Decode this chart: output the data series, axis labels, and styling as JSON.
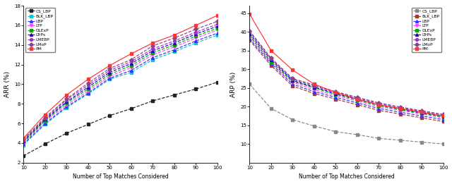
{
  "x": [
    10,
    20,
    30,
    40,
    50,
    60,
    70,
    80,
    90,
    100
  ],
  "arr": {
    "CS_LBP": [
      2.7,
      3.9,
      5.0,
      5.9,
      6.8,
      7.5,
      8.3,
      8.9,
      9.5,
      10.2
    ],
    "BLK_LBP": [
      3.8,
      5.9,
      7.6,
      9.0,
      10.5,
      11.2,
      12.5,
      13.3,
      14.2,
      15.0
    ],
    "LBP": [
      3.9,
      6.0,
      7.7,
      9.1,
      10.6,
      11.4,
      12.7,
      13.5,
      14.4,
      15.2
    ],
    "LTP": [
      4.0,
      6.2,
      7.9,
      9.3,
      10.8,
      11.7,
      13.0,
      13.8,
      14.7,
      15.5
    ],
    "DLExP": [
      4.1,
      6.3,
      8.1,
      9.5,
      11.0,
      11.9,
      13.2,
      14.0,
      14.9,
      15.7
    ],
    "LTrPs": [
      4.2,
      6.4,
      8.2,
      9.7,
      11.2,
      12.1,
      13.4,
      14.2,
      15.1,
      15.9
    ],
    "LMEBP": [
      4.3,
      6.5,
      8.4,
      9.9,
      11.4,
      12.3,
      13.6,
      14.4,
      15.3,
      16.1
    ],
    "LMoP": [
      4.4,
      6.6,
      8.5,
      10.1,
      11.6,
      12.5,
      13.9,
      14.7,
      15.6,
      16.4
    ],
    "PM": [
      4.5,
      6.9,
      8.9,
      10.5,
      11.9,
      13.1,
      14.2,
      15.0,
      16.0,
      17.0
    ]
  },
  "arp": {
    "CS_LBP": [
      26.0,
      19.5,
      16.5,
      14.8,
      13.3,
      12.5,
      11.5,
      11.0,
      10.5,
      10.0
    ],
    "BLK_LBP": [
      37.8,
      31.0,
      25.5,
      23.5,
      22.0,
      20.5,
      19.0,
      18.0,
      17.0,
      16.0
    ],
    "LBP": [
      38.2,
      31.5,
      26.0,
      24.0,
      22.5,
      21.0,
      19.5,
      18.5,
      17.5,
      16.5
    ],
    "LTP": [
      38.8,
      31.8,
      26.5,
      24.5,
      23.0,
      21.5,
      20.0,
      19.0,
      18.0,
      17.0
    ],
    "DLExP": [
      39.0,
      32.0,
      26.8,
      25.0,
      23.3,
      21.8,
      20.3,
      19.2,
      18.2,
      17.2
    ],
    "LTrPs": [
      39.5,
      32.5,
      27.0,
      25.2,
      23.5,
      22.0,
      20.5,
      19.4,
      18.4,
      17.4
    ],
    "LMEBP": [
      40.0,
      32.8,
      27.3,
      25.5,
      23.8,
      22.3,
      20.8,
      19.7,
      18.7,
      17.7
    ],
    "LMoP": [
      40.3,
      33.0,
      27.5,
      25.8,
      24.0,
      22.5,
      21.0,
      19.9,
      18.9,
      17.9
    ],
    "PM": [
      44.8,
      35.0,
      29.8,
      26.0,
      23.8,
      22.0,
      20.5,
      19.5,
      18.5,
      17.5
    ]
  },
  "colors": {
    "CS_LBP": "#222222",
    "BLK_LBP": "#00CCCC",
    "LBP": "#3333FF",
    "LTP": "#FF44FF",
    "DLExP": "#00AA00",
    "LTrPs": "#2200CC",
    "LMEBP": "#9933CC",
    "LMoP": "#884488",
    "PM": "#FF3333"
  },
  "colors_right": {
    "CS_LBP": "#888888",
    "BLK_LBP": "#AA3333",
    "LBP": "#3333FF",
    "LTP": "#FF44FF",
    "DLExP": "#00AA00",
    "LTrPs": "#2200CC",
    "LMEBP": "#9933CC",
    "LMoP": "#884488",
    "PM": "#FF3333"
  },
  "markers": {
    "CS_LBP": "s",
    "BLK_LBP": "s",
    "LBP": "^",
    "LTP": "v",
    "DLExP": "s",
    "LTrPs": "^",
    "LMEBP": "o",
    "LMoP": "D",
    "PM": "s"
  },
  "linestyles": {
    "CS_LBP": "--",
    "BLK_LBP": "--",
    "LBP": "--",
    "LTP": "--",
    "DLExP": "--",
    "LTrPs": "--",
    "LMEBP": "--",
    "LMoP": "--",
    "PM": "-"
  },
  "arr_ylim": [
    2,
    18
  ],
  "arr_yticks": [
    2,
    4,
    6,
    8,
    10,
    12,
    14,
    16,
    18
  ],
  "arp_ylim": [
    5,
    47
  ],
  "arp_yticks": [
    10,
    15,
    20,
    25,
    30,
    35,
    40,
    45
  ],
  "xticks": [
    10,
    20,
    30,
    40,
    50,
    60,
    70,
    80,
    90,
    100
  ],
  "xlabel": "Number of Top Matches Considered",
  "arr_ylabel": "ARR (%)",
  "arp_ylabel": "ARP (%)",
  "legend_order": [
    "CS_LBP",
    "BLK_LBP",
    "LBP",
    "LTP",
    "DLExP",
    "LTrPs",
    "LMEBP",
    "LMoP",
    "PM"
  ]
}
